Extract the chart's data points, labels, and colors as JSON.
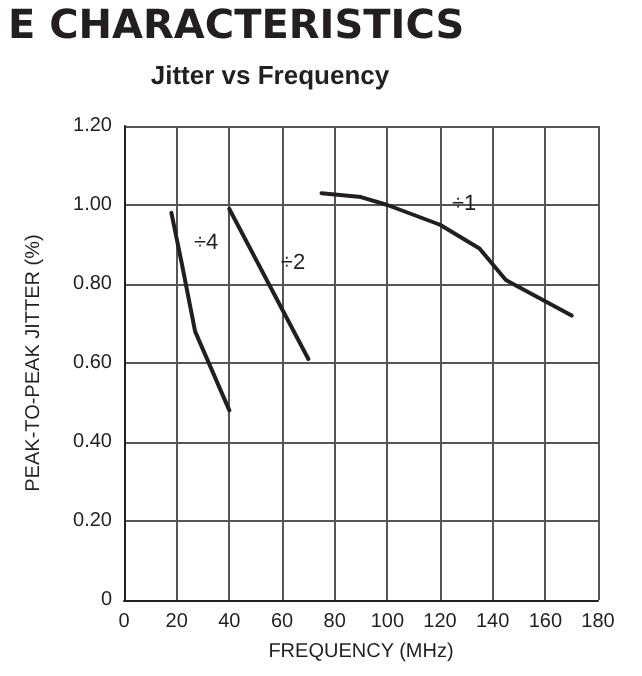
{
  "chart_data": {
    "type": "line",
    "title": "Jitter vs Frequency",
    "xlabel": "FREQUENCY (MHz)",
    "ylabel": "PEAK-TO-PEAK JITTER (%)",
    "annotations": [
      "E CHARACTERISTICS"
    ],
    "series": [
      {
        "name": "÷4",
        "color": "#231f20",
        "x": [
          18,
          22,
          27,
          40
        ],
        "values": [
          0.98,
          0.85,
          0.68,
          0.48
        ]
      },
      {
        "name": "÷2",
        "color": "#231f20",
        "x": [
          40,
          55,
          70
        ],
        "values": [
          0.99,
          0.8,
          0.61
        ]
      },
      {
        "name": "÷1",
        "color": "#231f20",
        "x": [
          75,
          90,
          100,
          120,
          135,
          140,
          145,
          170
        ],
        "values": [
          1.03,
          1.02,
          1.0,
          0.95,
          0.89,
          0.85,
          0.81,
          0.72
        ]
      }
    ],
    "xlim": [
      0,
      180
    ],
    "xticks": [
      0,
      20,
      40,
      60,
      80,
      100,
      120,
      140,
      160,
      180
    ],
    "ylim": [
      0,
      1.2
    ],
    "yticks": [
      0,
      {
        "value": 0.2,
        "label": "0.20"
      },
      {
        "value": 0.4,
        "label": "0.40"
      },
      {
        "value": 0.6,
        "label": "0.60"
      },
      {
        "value": 0.8,
        "label": "0.80"
      },
      {
        "value": 1.0,
        "label": "1.00"
      },
      {
        "value": 1.2,
        "label": "1.20"
      }
    ],
    "grid": true,
    "legend": false,
    "marker": "none",
    "line_style": "solid"
  }
}
